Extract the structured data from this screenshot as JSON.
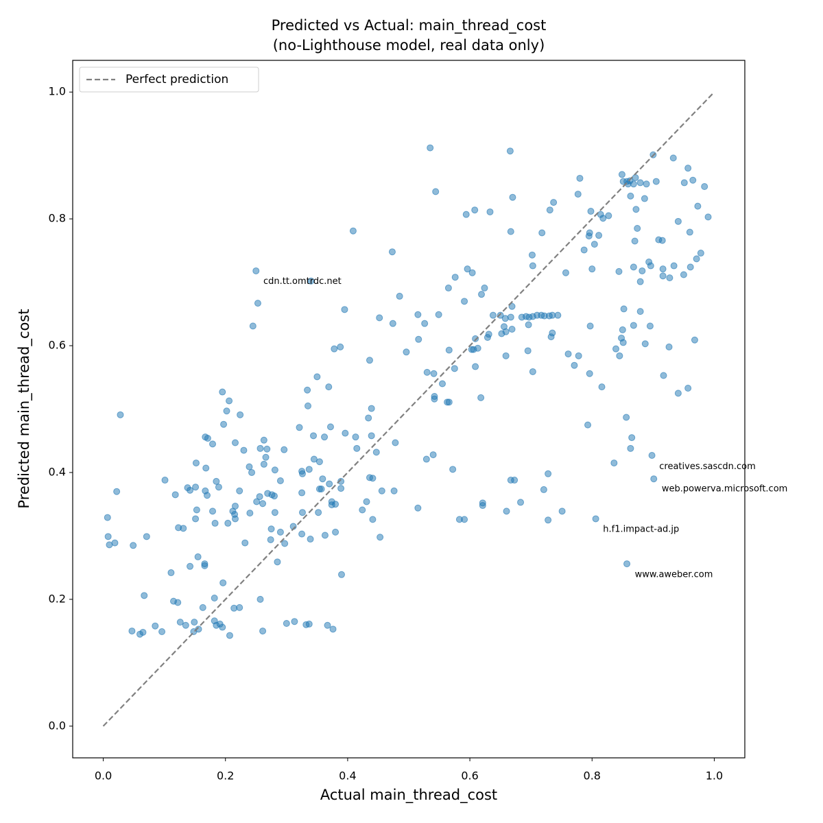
{
  "chart_data": {
    "type": "scatter",
    "title": "Predicted vs Actual: main_thread_cost",
    "subtitle": "(no-Lighthouse model, real data only)",
    "x_label": "Actual main_thread_cost",
    "y_label": "Predicted main_thread_cost",
    "xlim": [
      -0.05,
      1.05
    ],
    "ylim": [
      -0.05,
      1.05
    ],
    "xticks": [
      {
        "value": 0,
        "label": "0.0"
      },
      0.2,
      0.4,
      0.6,
      0.8,
      {
        "value": 1,
        "label": "1.0"
      }
    ],
    "yticks": [
      {
        "value": 0,
        "label": "0.0"
      },
      0.2,
      0.4,
      0.6,
      0.8,
      {
        "value": 1,
        "label": "1.0"
      }
    ],
    "grid": false,
    "legend": "upper left",
    "series": [
      {
        "color": "#1f77b4",
        "x": [
          0.028,
          0.022,
          0.007,
          0.008,
          0.01,
          0.019,
          0.049,
          0.071,
          0.067,
          0.047,
          0.06,
          0.065,
          0.085,
          0.096,
          0.101,
          0.111,
          0.115,
          0.122,
          0.118,
          0.123,
          0.131,
          0.126,
          0.135,
          0.138,
          0.142,
          0.142,
          0.149,
          0.148,
          0.156,
          0.152,
          0.151,
          0.153,
          0.151,
          0.155,
          0.166,
          0.166,
          0.163,
          0.167,
          0.171,
          0.179,
          0.168,
          0.167,
          0.17,
          0.179,
          0.183,
          0.182,
          0.185,
          0.189,
          0.182,
          0.185,
          0.191,
          0.195,
          0.196,
          0.195,
          0.206,
          0.202,
          0.197,
          0.204,
          0.207,
          0.212,
          0.215,
          0.216,
          0.216,
          0.216,
          0.223,
          0.214,
          0.223,
          0.224,
          0.23,
          0.232,
          0.239,
          0.24,
          0.243,
          0.245,
          0.25,
          0.253,
          0.251,
          0.257,
          0.256,
          0.257,
          0.261,
          0.263,
          0.268,
          0.266,
          0.263,
          0.261,
          0.269,
          0.275,
          0.274,
          0.276,
          0.28,
          0.281,
          0.281,
          0.285,
          0.29,
          0.29,
          0.297,
          0.296,
          0.3,
          0.313,
          0.311,
          0.321,
          0.325,
          0.326,
          0.325,
          0.326,
          0.325,
          0.332,
          0.337,
          0.334,
          0.335,
          0.337,
          0.34,
          0.339,
          0.344,
          0.345,
          0.35,
          0.352,
          0.354,
          0.354,
          0.357,
          0.359,
          0.362,
          0.363,
          0.367,
          0.369,
          0.372,
          0.37,
          0.374,
          0.374,
          0.376,
          0.378,
          0.38,
          0.38,
          0.388,
          0.389,
          0.389,
          0.39,
          0.395,
          0.396,
          0.409,
          0.413,
          0.415,
          0.424,
          0.431,
          0.434,
          0.436,
          0.439,
          0.439,
          0.436,
          0.441,
          0.441,
          0.447,
          0.452,
          0.453,
          0.456,
          0.473,
          0.474,
          0.478,
          0.476,
          0.485,
          0.496,
          0.515,
          0.516,
          0.515,
          0.526,
          0.529,
          0.53,
          0.535,
          0.541,
          0.542,
          0.542,
          0.54,
          0.544,
          0.549,
          0.555,
          0.563,
          0.566,
          0.565,
          0.566,
          0.572,
          0.575,
          0.576,
          0.583,
          0.591,
          0.591,
          0.594,
          0.596,
          0.604,
          0.603,
          0.606,
          0.608,
          0.609,
          0.609,
          0.613,
          0.618,
          0.619,
          0.621,
          0.621,
          0.624,
          0.629,
          0.631,
          0.633,
          0.638,
          0.65,
          0.652,
          0.656,
          0.658,
          0.659,
          0.659,
          0.66,
          0.666,
          0.667,
          0.667,
          0.667,
          0.669,
          0.669,
          0.67,
          0.673,
          0.683,
          0.685,
          0.692,
          0.697,
          0.695,
          0.696,
          0.703,
          0.702,
          0.703,
          0.703,
          0.71,
          0.717,
          0.718,
          0.722,
          0.721,
          0.728,
          0.728,
          0.73,
          0.731,
          0.733,
          0.735,
          0.735,
          0.737,
          0.744,
          0.751,
          0.757,
          0.761,
          0.771,
          0.777,
          0.778,
          0.78,
          0.787,
          0.793,
          0.795,
          0.796,
          0.796,
          0.797,
          0.798,
          0.8,
          0.804,
          0.806,
          0.811,
          0.814,
          0.816,
          0.818,
          0.827,
          0.836,
          0.839,
          0.844,
          0.845,
          0.848,
          0.85,
          0.849,
          0.851,
          0.851,
          0.852,
          0.856,
          0.857,
          0.857,
          0.859,
          0.862,
          0.863,
          0.863,
          0.865,
          0.868,
          0.868,
          0.868,
          0.87,
          0.871,
          0.872,
          0.874,
          0.879,
          0.879,
          0.879,
          0.882,
          0.886,
          0.887,
          0.889,
          0.893,
          0.896,
          0.895,
          0.898,
          0.9,
          0.901,
          0.905,
          0.909,
          0.915,
          0.916,
          0.916,
          0.917,
          0.927,
          0.926,
          0.933,
          0.934,
          0.941,
          0.941,
          0.95,
          0.951,
          0.957,
          0.957,
          0.96,
          0.961,
          0.965,
          0.968,
          0.971,
          0.973,
          0.978,
          0.984,
          0.99
        ],
        "values": [
          0.491,
          0.37,
          0.329,
          0.299,
          0.286,
          0.289,
          0.285,
          0.299,
          0.206,
          0.15,
          0.145,
          0.148,
          0.158,
          0.149,
          0.388,
          0.242,
          0.197,
          0.195,
          0.365,
          0.313,
          0.312,
          0.164,
          0.159,
          0.376,
          0.372,
          0.252,
          0.164,
          0.149,
          0.153,
          0.415,
          0.377,
          0.341,
          0.327,
          0.267,
          0.256,
          0.253,
          0.187,
          0.456,
          0.454,
          0.445,
          0.407,
          0.371,
          0.364,
          0.339,
          0.32,
          0.202,
          0.386,
          0.377,
          0.166,
          0.159,
          0.161,
          0.156,
          0.226,
          0.527,
          0.513,
          0.497,
          0.476,
          0.32,
          0.143,
          0.339,
          0.334,
          0.327,
          0.347,
          0.447,
          0.371,
          0.186,
          0.187,
          0.491,
          0.435,
          0.289,
          0.409,
          0.336,
          0.4,
          0.631,
          0.718,
          0.667,
          0.354,
          0.438,
          0.362,
          0.2,
          0.15,
          0.451,
          0.437,
          0.424,
          0.413,
          0.351,
          0.367,
          0.311,
          0.294,
          0.365,
          0.363,
          0.404,
          0.337,
          0.259,
          0.387,
          0.306,
          0.288,
          0.436,
          0.162,
          0.165,
          0.315,
          0.471,
          0.402,
          0.398,
          0.368,
          0.337,
          0.303,
          0.16,
          0.161,
          0.53,
          0.505,
          0.405,
          0.702,
          0.295,
          0.458,
          0.421,
          0.551,
          0.337,
          0.417,
          0.374,
          0.374,
          0.39,
          0.456,
          0.301,
          0.159,
          0.535,
          0.472,
          0.382,
          0.354,
          0.349,
          0.153,
          0.595,
          0.306,
          0.35,
          0.598,
          0.386,
          0.375,
          0.239,
          0.657,
          0.462,
          0.781,
          0.456,
          0.438,
          0.341,
          0.354,
          0.486,
          0.577,
          0.501,
          0.458,
          0.392,
          0.391,
          0.326,
          0.432,
          0.644,
          0.298,
          0.371,
          0.748,
          0.635,
          0.447,
          0.371,
          0.678,
          0.59,
          0.649,
          0.61,
          0.344,
          0.635,
          0.421,
          0.558,
          0.912,
          0.556,
          0.52,
          0.516,
          0.428,
          0.843,
          0.649,
          0.54,
          0.511,
          0.511,
          0.691,
          0.593,
          0.405,
          0.564,
          0.708,
          0.326,
          0.326,
          0.67,
          0.807,
          0.721,
          0.715,
          0.594,
          0.594,
          0.814,
          0.611,
          0.567,
          0.596,
          0.518,
          0.681,
          0.352,
          0.348,
          0.691,
          0.613,
          0.618,
          0.811,
          0.648,
          0.648,
          0.619,
          0.63,
          0.643,
          0.622,
          0.584,
          0.339,
          0.907,
          0.645,
          0.78,
          0.388,
          0.626,
          0.662,
          0.834,
          0.388,
          0.353,
          0.645,
          0.646,
          0.645,
          0.592,
          0.633,
          0.646,
          0.743,
          0.726,
          0.559,
          0.648,
          0.648,
          0.778,
          0.647,
          0.373,
          0.398,
          0.325,
          0.647,
          0.814,
          0.614,
          0.648,
          0.62,
          0.826,
          0.648,
          0.339,
          0.715,
          0.587,
          0.569,
          0.839,
          0.584,
          0.864,
          0.751,
          0.475,
          0.773,
          0.778,
          0.556,
          0.631,
          0.812,
          0.721,
          0.76,
          0.327,
          0.774,
          0.807,
          0.535,
          0.801,
          0.805,
          0.415,
          0.595,
          0.717,
          0.584,
          0.612,
          0.625,
          0.87,
          0.859,
          0.605,
          0.658,
          0.487,
          0.859,
          0.256,
          0.855,
          0.86,
          0.438,
          0.836,
          0.455,
          0.855,
          0.724,
          0.632,
          0.765,
          0.865,
          0.815,
          0.785,
          0.857,
          0.654,
          0.701,
          0.718,
          0.832,
          0.603,
          0.855,
          0.732,
          0.726,
          0.631,
          0.427,
          0.901,
          0.39,
          0.859,
          0.767,
          0.766,
          0.721,
          0.71,
          0.553,
          0.707,
          0.598,
          0.896,
          0.726,
          0.796,
          0.525,
          0.712,
          0.857,
          0.88,
          0.533,
          0.779,
          0.724,
          0.861,
          0.609,
          0.737,
          0.82,
          0.746,
          0.851,
          0.803
        ]
      },
      {
        "name": "Perfect prediction",
        "color": "#808080",
        "style": "dashed",
        "x": [
          0,
          1
        ],
        "values": [
          0,
          1
        ]
      }
    ],
    "annotations": [
      {
        "text": "cdn.tt.omtrdc.net",
        "x": 0.262,
        "y": 0.701
      },
      {
        "text": "creatives.sascdn.com",
        "x": 0.91,
        "y": 0.409
      },
      {
        "text": "web.powerva.microsoft.com",
        "x": 0.914,
        "y": 0.374
      },
      {
        "text": "h.f1.impact-ad.jp",
        "x": 0.818,
        "y": 0.31
      },
      {
        "text": "www.aweber.com",
        "x": 0.87,
        "y": 0.239
      }
    ]
  }
}
